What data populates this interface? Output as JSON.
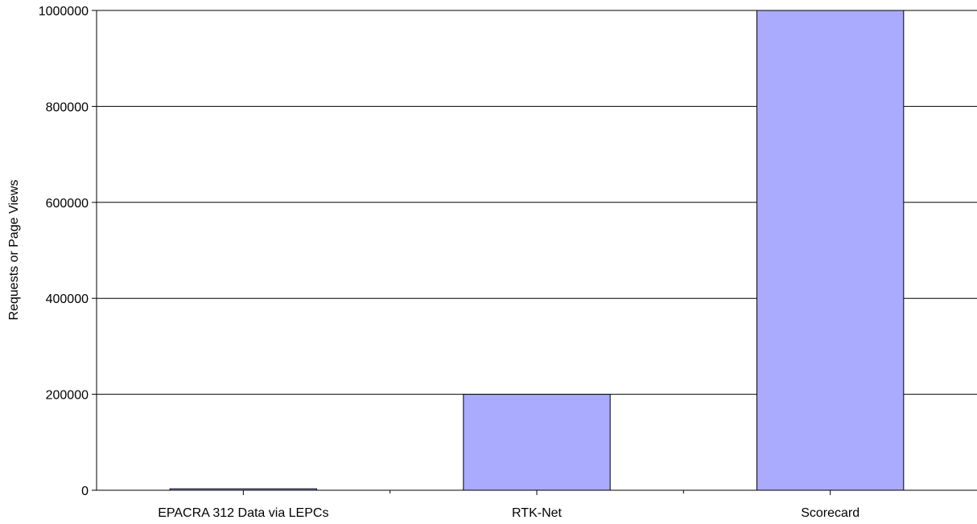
{
  "chart_data": {
    "type": "bar",
    "categories": [
      "EPACRA 312 Data via LEPCs",
      "RTK-Net",
      "Scorecard"
    ],
    "values": [
      3000,
      200000,
      1000000
    ],
    "title": "",
    "xlabel": "",
    "ylabel": "Requests or Page Views",
    "ylim": [
      0,
      1000000
    ],
    "yticks": [
      0,
      200000,
      400000,
      600000,
      800000,
      1000000
    ],
    "ytick_labels": [
      "0",
      "200000",
      "400000",
      "600000",
      "800000",
      "1000000"
    ],
    "grid": "horizontal",
    "legend": "none",
    "colors": {
      "bar_fill": "#aaaaff",
      "bar_stroke": "#000000",
      "grid": "#000000",
      "background": "#ffffff"
    }
  }
}
